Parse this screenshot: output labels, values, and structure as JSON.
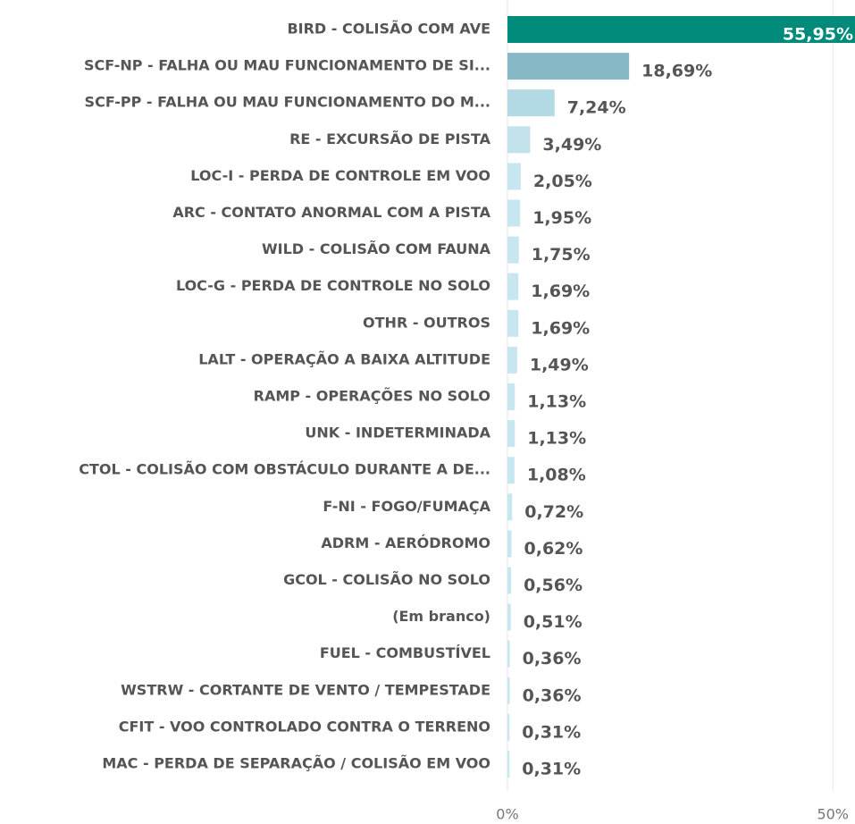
{
  "chart_data": {
    "type": "barh",
    "categories": [
      "BIRD - COLISÃO COM AVE",
      "SCF-NP - FALHA OU MAU FUNCIONAMENTO DE SI...",
      "SCF-PP - FALHA OU MAU FUNCIONAMENTO DO M...",
      "RE - EXCURSÃO DE PISTA",
      "LOC-I - PERDA DE CONTROLE EM VOO",
      "ARC - CONTATO ANORMAL COM A PISTA",
      "WILD - COLISÃO COM FAUNA",
      "LOC-G - PERDA DE CONTROLE NO SOLO",
      "OTHR - OUTROS",
      "LALT - OPERAÇÃO A BAIXA ALTITUDE",
      "RAMP - OPERAÇÕES NO SOLO",
      "UNK - INDETERMINADA",
      "CTOL - COLISÃO COM OBSTÁCULO DURANTE A DE...",
      "F-NI - FOGO/FUMAÇA",
      "ADRM - AERÓDROMO",
      "GCOL - COLISÃO NO SOLO",
      "(Em branco)",
      "FUEL - COMBUSTÍVEL",
      "WSTRW - CORTANTE DE VENTO / TEMPESTADE",
      "CFIT - VOO CONTROLADO CONTRA O TERRENO",
      "MAC - PERDA DE SEPARAÇÃO / COLISÃO EM VOO"
    ],
    "values": [
      55.95,
      18.69,
      7.24,
      3.49,
      2.05,
      1.95,
      1.75,
      1.69,
      1.69,
      1.49,
      1.13,
      1.13,
      1.08,
      0.72,
      0.62,
      0.56,
      0.51,
      0.36,
      0.36,
      0.31,
      0.31
    ],
    "value_labels": [
      "55,95%",
      "18,69%",
      "7,24%",
      "3,49%",
      "2,05%",
      "1,95%",
      "1,75%",
      "1,69%",
      "1,69%",
      "1,49%",
      "1,13%",
      "1,13%",
      "1,08%",
      "0,72%",
      "0,62%",
      "0,56%",
      "0,51%",
      "0,36%",
      "0,36%",
      "0,31%",
      "0,31%"
    ],
    "colors": [
      "#008a7a",
      "#86b7c4",
      "#b3d9e4",
      "#c3e3ec",
      "#c8e6ef",
      "#c8e6ef",
      "#c8e6ef",
      "#c8e6ef",
      "#c8e6ef",
      "#c8e6ef",
      "#c8e6ef",
      "#c8e6ef",
      "#c8e6ef",
      "#c8e6ef",
      "#c8e6ef",
      "#c8e6ef",
      "#c8e6ef",
      "#c8e6ef",
      "#c8e6ef",
      "#c8e6ef",
      "#c8e6ef"
    ],
    "xlim": [
      0,
      53.4
    ],
    "xticks": [
      {
        "value": 0,
        "label": "0%"
      },
      {
        "value": 50,
        "label": "50%"
      }
    ],
    "grid": true
  }
}
